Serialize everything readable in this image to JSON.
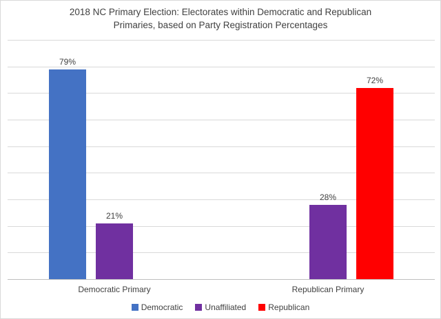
{
  "chart_data": {
    "type": "bar",
    "title": "2018 NC Primary Election: Electorates within Democratic and Republican Primaries, based on Party Registration Percentages",
    "title_lines": [
      "2018 NC Primary Election: Electorates within Democratic and Republican",
      "Primaries, based on Party Registration Percentages"
    ],
    "categories": [
      "Democratic Primary",
      "Republican Primary"
    ],
    "series": [
      {
        "name": "Democratic",
        "color": "#4472C4",
        "values": [
          79,
          null
        ]
      },
      {
        "name": "Unaffiliated",
        "color": "#7030A0",
        "values": [
          21,
          28
        ]
      },
      {
        "name": "Republican",
        "color": "#FF0000",
        "values": [
          null,
          72
        ]
      }
    ],
    "data_labels": [
      "79%",
      "21%",
      "28%",
      "72%"
    ],
    "value_suffix": "%",
    "ylim": [
      0,
      90
    ],
    "gridline_interval": 10,
    "grid": true,
    "y_axis_tick_labels_visible": false,
    "legend_position": "bottom",
    "colors": {
      "background": "#FFFFFF",
      "chart_border": "#D9D9D9",
      "gridline": "#D9D9D9",
      "axis_line": "#BFBFBF",
      "text": "#404040"
    }
  }
}
